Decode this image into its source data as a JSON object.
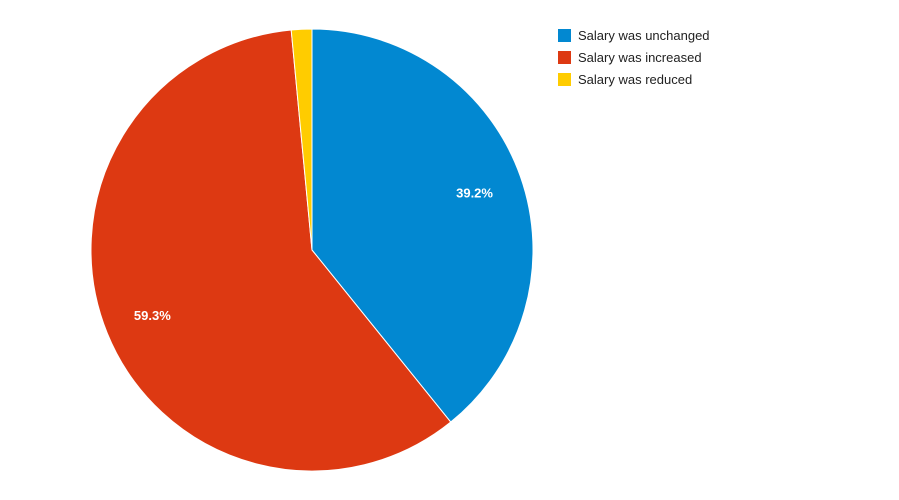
{
  "chart_data": {
    "type": "pie",
    "title": "",
    "legend_position": "top-right",
    "slices": [
      {
        "name": "Salary was unchanged",
        "value": 39.2,
        "label": "39.2%",
        "color": "#0288d1"
      },
      {
        "name": "Salary was increased",
        "value": 59.3,
        "label": "59.3%",
        "color": "#dd3912"
      },
      {
        "name": "Salary was reduced",
        "value": 1.5,
        "label": "",
        "color": "#ffcc00"
      }
    ]
  }
}
